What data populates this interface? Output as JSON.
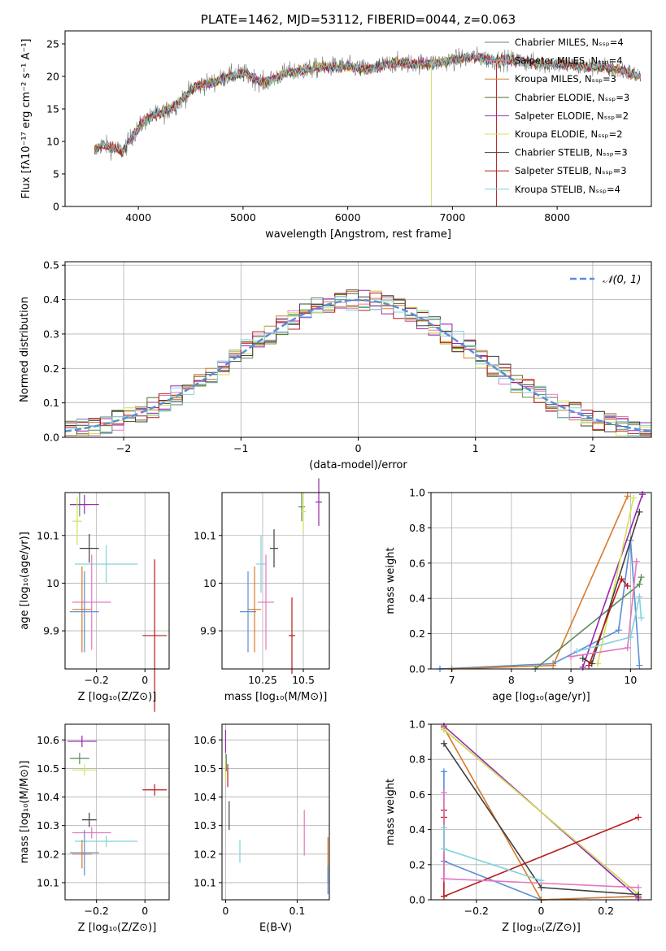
{
  "chart_data": [
    {
      "id": "spectrum",
      "type": "line",
      "title": "PLATE=1462, MJD=53112, FIBERID=0044, z=0.063",
      "xlabel": "wavelength [Angstrom, rest frame]",
      "ylabel": "Flux [fλ10⁻¹⁷ erg cm⁻² s⁻¹ A⁻¹]",
      "xlim": [
        3300,
        8900
      ],
      "ylim": [
        0,
        27
      ],
      "xticks": [
        4000,
        5000,
        6000,
        7000,
        8000
      ],
      "yticks": [
        0,
        5,
        10,
        15,
        20,
        25
      ],
      "grid": false,
      "legend_position": "top-right",
      "continuum": {
        "x": [
          3580,
          3650,
          3750,
          3850,
          3950,
          4050,
          4150,
          4250,
          4350,
          4450,
          4550,
          4700,
          4850,
          5000,
          5200,
          5400,
          5600,
          5800,
          6000,
          6200,
          6400,
          6600,
          6800,
          7000,
          7200,
          7400,
          7600,
          7800,
          8000,
          8200,
          8400,
          8600,
          8800
        ],
        "y": [
          8.5,
          9.5,
          9.0,
          8.5,
          11.0,
          13.0,
          14.0,
          14.5,
          15.5,
          17.0,
          18.5,
          19.0,
          20.0,
          20.5,
          19.0,
          20.5,
          21.0,
          21.5,
          21.5,
          21.0,
          22.0,
          22.0,
          22.0,
          22.5,
          23.0,
          22.5,
          22.5,
          22.0,
          22.0,
          21.5,
          21.5,
          21.0,
          20.0
        ]
      },
      "series": [
        {
          "name": "Chabrier MILES, N_SSP=4",
          "color": "#5c8b5c"
        },
        {
          "name": "Salpeter MILES, N_SSP=4",
          "color": "#e377c2"
        },
        {
          "name": "Kroupa MILES, N_SSP=3",
          "color": "#d97b2a"
        },
        {
          "name": "Chabrier ELODIE, N_SSP=3",
          "color": "#556b2f"
        },
        {
          "name": "Salpeter ELODIE, N_SSP=2",
          "color": "#9a27b0"
        },
        {
          "name": "Kroupa ELODIE, N_SSP=2",
          "color": "#d4e157"
        },
        {
          "name": "Chabrier STELIB, N_SSP=3",
          "color": "#404040"
        },
        {
          "name": "Salpeter STELIB, N_SSP=3",
          "color": "#b71c1c"
        },
        {
          "name": "Kroupa STELIB, N_SSP=4",
          "color": "#7fd3dc"
        }
      ]
    },
    {
      "id": "residuals",
      "type": "line",
      "xlabel": "(data-model)/error",
      "ylabel": "Normed distribution",
      "xlim": [
        -2.5,
        2.5
      ],
      "ylim": [
        0,
        0.51
      ],
      "xticks": [
        -2,
        -1,
        0,
        1,
        2
      ],
      "yticks": [
        0.0,
        0.1,
        0.2,
        0.3,
        0.4,
        0.5
      ],
      "grid": true,
      "legend_position": "top-right",
      "gaussian_label": "𝒩(0, 1)",
      "gaussian_color": "#5a8fd6",
      "bin_width": 0.1
    },
    {
      "id": "age_vs_Z",
      "type": "scatter",
      "xlabel": "Z [log₁₀(Z/Z⊙)]",
      "ylabel": "age  [log₁₀(age/yr)]",
      "xlim": [
        -0.33,
        0.1
      ],
      "ylim": [
        9.82,
        10.19
      ],
      "xticks": [
        -0.2,
        0.0
      ],
      "yticks": [
        9.9,
        10.0,
        10.1
      ],
      "grid": true,
      "points": [
        {
          "x": -0.27,
          "y": 10.165,
          "xerr": 0.04,
          "yerr": 0.025,
          "color": "#5c8b5c"
        },
        {
          "x": -0.25,
          "y": 10.165,
          "xerr": 0.06,
          "yerr": 0.02,
          "color": "#9a27b0"
        },
        {
          "x": -0.28,
          "y": 10.13,
          "xerr": 0.02,
          "yerr": 0.05,
          "color": "#d4e157"
        },
        {
          "x": -0.23,
          "y": 10.073,
          "xerr": 0.04,
          "yerr": 0.03,
          "color": "#404040"
        },
        {
          "x": -0.16,
          "y": 10.04,
          "xerr": 0.13,
          "yerr": 0.04,
          "color": "#7fd3dc"
        },
        {
          "x": -0.22,
          "y": 9.96,
          "xerr": 0.08,
          "yerr": 0.1,
          "color": "#e377c2"
        },
        {
          "x": -0.26,
          "y": 9.945,
          "xerr": 0.04,
          "yerr": 0.09,
          "color": "#d97b2a"
        },
        {
          "x": -0.25,
          "y": 9.94,
          "xerr": 0.06,
          "yerr": 0.085,
          "color": "#5a8fd6"
        },
        {
          "x": 0.04,
          "y": 9.89,
          "xerr": 0.05,
          "yerr": 0.16,
          "color": "#b71c1c"
        }
      ]
    },
    {
      "id": "age_vs_mass",
      "type": "scatter",
      "xlabel": "mass [log₁₀(M/M⊙)]",
      "ylabel": "",
      "xlim": [
        10.0,
        10.66
      ],
      "ylim": [
        9.82,
        10.19
      ],
      "xticks": [
        10.25,
        10.5
      ],
      "yticks": [
        9.9,
        10.0,
        10.1
      ],
      "grid": true,
      "points": [
        {
          "x": 10.595,
          "y": 10.17,
          "xerr": 0.02,
          "yerr": 0.05,
          "color": "#9a27b0"
        },
        {
          "x": 10.49,
          "y": 10.16,
          "xerr": 0.02,
          "yerr": 0.03,
          "color": "#5c8b5c"
        },
        {
          "x": 10.5,
          "y": 10.15,
          "xerr": 0.015,
          "yerr": 0.04,
          "color": "#d4e157"
        },
        {
          "x": 10.32,
          "y": 10.073,
          "xerr": 0.025,
          "yerr": 0.04,
          "color": "#404040"
        },
        {
          "x": 10.24,
          "y": 10.04,
          "xerr": 0.03,
          "yerr": 0.06,
          "color": "#7fd3dc"
        },
        {
          "x": 10.27,
          "y": 9.96,
          "xerr": 0.05,
          "yerr": 0.1,
          "color": "#e377c2"
        },
        {
          "x": 10.2,
          "y": 9.945,
          "xerr": 0.04,
          "yerr": 0.09,
          "color": "#d97b2a"
        },
        {
          "x": 10.16,
          "y": 9.94,
          "xerr": 0.05,
          "yerr": 0.085,
          "color": "#5a8fd6"
        },
        {
          "x": 10.43,
          "y": 9.89,
          "xerr": 0.02,
          "yerr": 0.08,
          "color": "#b71c1c"
        }
      ]
    },
    {
      "id": "massweight_vs_age",
      "type": "line",
      "xlabel": "age  [log₁₀(age/yr)]",
      "ylabel": "mass weight",
      "xlim": [
        6.65,
        10.35
      ],
      "ylim": [
        0,
        1
      ],
      "xticks": [
        7,
        8,
        9,
        10
      ],
      "yticks": [
        0.0,
        0.2,
        0.4,
        0.6,
        0.8,
        1.0
      ],
      "grid": true,
      "series": [
        {
          "color": "#5a8fd6",
          "x": [
            6.8,
            8.7,
            9.8,
            10.0,
            10.15
          ],
          "y": [
            0.0,
            0.03,
            0.22,
            0.73,
            0.02
          ]
        },
        {
          "color": "#d97b2a",
          "x": [
            7.0,
            8.7,
            9.95
          ],
          "y": [
            0.0,
            0.02,
            0.98
          ]
        },
        {
          "color": "#5c8b5c",
          "x": [
            8.4,
            10.15,
            10.18
          ],
          "y": [
            0.0,
            0.48,
            0.52
          ]
        },
        {
          "color": "#9a27b0",
          "x": [
            9.2,
            10.2
          ],
          "y": [
            0.01,
            0.99
          ]
        },
        {
          "color": "#d4e157",
          "x": [
            9.45,
            10.05
          ],
          "y": [
            0.03,
            0.97
          ]
        },
        {
          "color": "#404040",
          "x": [
            9.2,
            9.35,
            10.15
          ],
          "y": [
            0.06,
            0.03,
            0.89
          ]
        },
        {
          "color": "#b71c1c",
          "x": [
            9.3,
            9.85,
            9.95
          ],
          "y": [
            0.02,
            0.51,
            0.47
          ]
        },
        {
          "color": "#e377c2",
          "x": [
            9.0,
            9.95,
            10.1
          ],
          "y": [
            0.07,
            0.12,
            0.61
          ]
        },
        {
          "color": "#7fd3dc",
          "x": [
            9.1,
            10.0,
            10.15,
            10.18
          ],
          "y": [
            0.1,
            0.18,
            0.41,
            0.29
          ]
        }
      ]
    },
    {
      "id": "mass_vs_Z",
      "type": "scatter",
      "xlabel": "Z [log₁₀(Z/Z⊙)]",
      "ylabel": "mass [log₁₀(M/M⊙)]",
      "xlim": [
        -0.33,
        0.1
      ],
      "ylim": [
        10.04,
        10.655
      ],
      "xticks": [
        -0.2,
        0.0
      ],
      "yticks": [
        10.1,
        10.2,
        10.3,
        10.4,
        10.5,
        10.6
      ],
      "grid": true,
      "points": [
        {
          "x": -0.26,
          "y": 10.595,
          "xerr": 0.06,
          "yerr": 0.02,
          "color": "#9a27b0"
        },
        {
          "x": -0.27,
          "y": 10.535,
          "xerr": 0.04,
          "yerr": 0.02,
          "color": "#5c8b5c"
        },
        {
          "x": -0.25,
          "y": 10.495,
          "xerr": 0.05,
          "yerr": 0.02,
          "color": "#d4e157"
        },
        {
          "x": 0.04,
          "y": 10.425,
          "xerr": 0.05,
          "yerr": 0.02,
          "color": "#b71c1c"
        },
        {
          "x": -0.23,
          "y": 10.32,
          "xerr": 0.03,
          "yerr": 0.025,
          "color": "#404040"
        },
        {
          "x": -0.22,
          "y": 10.275,
          "xerr": 0.08,
          "yerr": 0.02,
          "color": "#e377c2"
        },
        {
          "x": -0.16,
          "y": 10.245,
          "xerr": 0.13,
          "yerr": 0.02,
          "color": "#7fd3dc"
        },
        {
          "x": -0.26,
          "y": 10.2,
          "xerr": 0.04,
          "yerr": 0.05,
          "color": "#d97b2a"
        },
        {
          "x": -0.25,
          "y": 10.205,
          "xerr": 0.06,
          "yerr": 0.08,
          "color": "#5a8fd6"
        }
      ]
    },
    {
      "id": "mass_vs_ebv",
      "type": "scatter",
      "xlabel": "E(B-V)",
      "ylabel": "",
      "xlim": [
        -0.005,
        0.145
      ],
      "ylim": [
        10.04,
        10.655
      ],
      "xticks": [
        0.0,
        0.1
      ],
      "yticks": [
        10.1,
        10.2,
        10.3,
        10.4,
        10.5,
        10.6
      ],
      "grid": true,
      "points": [
        {
          "x": 0.0,
          "y": 10.595,
          "yerr": 0.04,
          "color": "#9a27b0"
        },
        {
          "x": 0.0,
          "y": 10.495,
          "yerr": 0.04,
          "color": "#d4e157"
        },
        {
          "x": 0.001,
          "y": 10.52,
          "yerr": 0.03,
          "color": "#5c8b5c"
        },
        {
          "x": 0.003,
          "y": 10.475,
          "yerr": 0.04,
          "color": "#b71c1c"
        },
        {
          "x": 0.005,
          "y": 10.335,
          "yerr": 0.05,
          "color": "#404040"
        },
        {
          "x": 0.02,
          "y": 10.21,
          "yerr": 0.04,
          "color": "#7fd3dc"
        },
        {
          "x": 0.11,
          "y": 10.275,
          "yerr": 0.08,
          "color": "#e377c2"
        },
        {
          "x": 0.143,
          "y": 10.18,
          "yerr": 0.08,
          "color": "#d97b2a"
        },
        {
          "x": 0.143,
          "y": 10.11,
          "yerr": 0.05,
          "color": "#5a8fd6"
        }
      ]
    },
    {
      "id": "massweight_vs_Z",
      "type": "line",
      "xlabel": "Z [log₁₀(Z/Z⊙)]",
      "ylabel": "mass weight",
      "xlim": [
        -0.34,
        0.34
      ],
      "ylim": [
        0,
        1
      ],
      "xticks": [
        -0.2,
        0.0,
        0.2
      ],
      "yticks": [
        0.0,
        0.2,
        0.4,
        0.6,
        0.8,
        1.0
      ],
      "grid": true,
      "series": [
        {
          "color": "#5a8fd6",
          "x": [
            -0.3,
            -0.3,
            0.0,
            0.3
          ],
          "y": [
            0.73,
            0.22,
            0.0,
            0.02
          ]
        },
        {
          "color": "#d97b2a",
          "x": [
            -0.3,
            0.0,
            0.3
          ],
          "y": [
            0.98,
            0.0,
            0.02
          ]
        },
        {
          "color": "#5c8b5c",
          "x": [
            -0.3,
            0.3
          ],
          "y": [
            0.97,
            0.03
          ]
        },
        {
          "color": "#9a27b0",
          "x": [
            -0.3,
            0.3
          ],
          "y": [
            0.99,
            0.01
          ]
        },
        {
          "color": "#d4e157",
          "x": [
            -0.3,
            0.3
          ],
          "y": [
            0.97,
            0.03
          ]
        },
        {
          "color": "#404040",
          "x": [
            -0.3,
            0.0,
            0.3
          ],
          "y": [
            0.89,
            0.07,
            0.03
          ]
        },
        {
          "color": "#b71c1c",
          "x": [
            -0.3,
            -0.3,
            -0.3,
            0.3
          ],
          "y": [
            0.51,
            0.47,
            0.02,
            0.47
          ]
        },
        {
          "color": "#e377c2",
          "x": [
            -0.3,
            -0.3,
            0.3
          ],
          "y": [
            0.61,
            0.12,
            0.07
          ]
        },
        {
          "color": "#7fd3dc",
          "x": [
            -0.3,
            -0.3,
            0.0
          ],
          "y": [
            0.41,
            0.29,
            0.11
          ]
        }
      ]
    }
  ]
}
